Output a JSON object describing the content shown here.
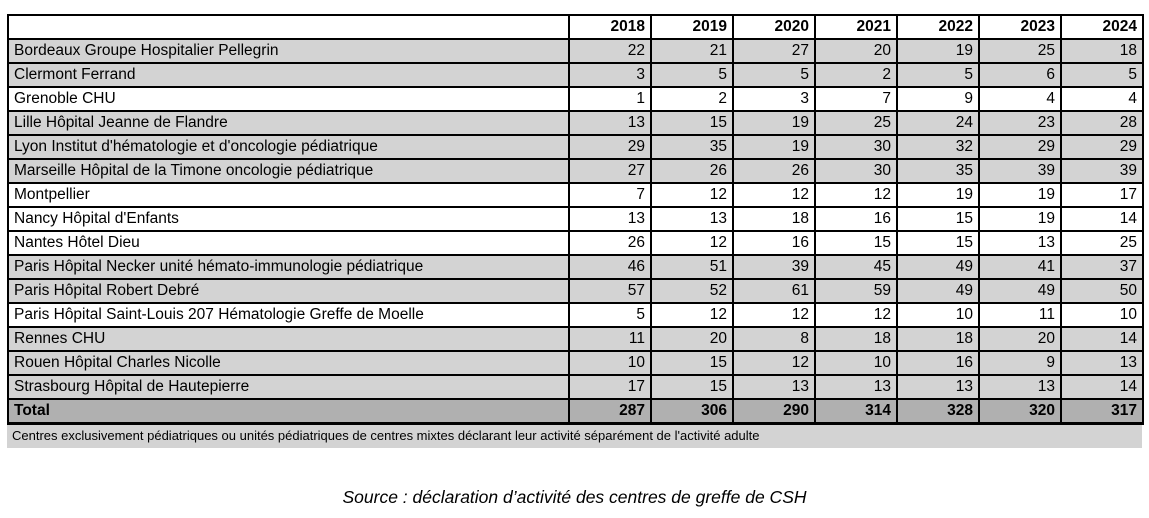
{
  "table": {
    "year_headers": [
      "2018",
      "2019",
      "2020",
      "2021",
      "2022",
      "2023",
      "2024"
    ],
    "rows": [
      {
        "name": "Bordeaux Groupe Hospitalier Pellegrin",
        "values": [
          22,
          21,
          27,
          20,
          19,
          25,
          18
        ],
        "shaded": true
      },
      {
        "name": "Clermont Ferrand",
        "values": [
          3,
          5,
          5,
          2,
          5,
          6,
          5
        ],
        "shaded": true
      },
      {
        "name": "Grenoble CHU",
        "values": [
          1,
          2,
          3,
          7,
          9,
          4,
          4
        ],
        "shaded": false
      },
      {
        "name": "Lille Hôpital Jeanne de Flandre",
        "values": [
          13,
          15,
          19,
          25,
          24,
          23,
          28
        ],
        "shaded": true
      },
      {
        "name": "Lyon Institut d'hématologie et d'oncologie pédiatrique",
        "values": [
          29,
          35,
          19,
          30,
          32,
          29,
          29
        ],
        "shaded": true
      },
      {
        "name": "Marseille Hôpital de la Timone oncologie pédiatrique",
        "values": [
          27,
          26,
          26,
          30,
          35,
          39,
          39
        ],
        "shaded": true
      },
      {
        "name": "Montpellier",
        "values": [
          7,
          12,
          12,
          12,
          19,
          19,
          17
        ],
        "shaded": false
      },
      {
        "name": "Nancy Hôpital d'Enfants",
        "values": [
          13,
          13,
          18,
          16,
          15,
          19,
          14
        ],
        "shaded": false
      },
      {
        "name": "Nantes Hôtel Dieu",
        "values": [
          26,
          12,
          16,
          15,
          15,
          13,
          25
        ],
        "shaded": false
      },
      {
        "name": "Paris Hôpital Necker unité hémato-immunologie pédiatrique",
        "values": [
          46,
          51,
          39,
          45,
          49,
          41,
          37
        ],
        "shaded": true
      },
      {
        "name": "Paris Hôpital Robert Debré",
        "values": [
          57,
          52,
          61,
          59,
          49,
          49,
          50
        ],
        "shaded": true
      },
      {
        "name": "Paris Hôpital Saint-Louis 207 Hématologie Greffe de Moelle",
        "values": [
          5,
          12,
          12,
          12,
          10,
          11,
          10
        ],
        "shaded": false
      },
      {
        "name": "Rennes CHU",
        "values": [
          11,
          20,
          8,
          18,
          18,
          20,
          14
        ],
        "shaded": true
      },
      {
        "name": "Rouen Hôpital Charles Nicolle",
        "values": [
          10,
          15,
          12,
          10,
          16,
          9,
          13
        ],
        "shaded": true
      },
      {
        "name": "Strasbourg Hôpital de Hautepierre",
        "values": [
          17,
          15,
          13,
          13,
          13,
          13,
          14
        ],
        "shaded": true
      }
    ],
    "total": {
      "label": "Total",
      "values": [
        287,
        306,
        290,
        314,
        328,
        320,
        317
      ]
    }
  },
  "footnote": "Centres exclusivement pédiatriques ou unités pédiatriques de centres mixtes déclarant leur activité séparément de l'activité adulte",
  "source": "Source : déclaration d’activité des centres de greffe de CSH",
  "colors": {
    "row_shaded": "#d3d3d3",
    "total_row": "#b0b0b0",
    "border": "#000000",
    "footnote_bg": "#d3d3d3"
  }
}
